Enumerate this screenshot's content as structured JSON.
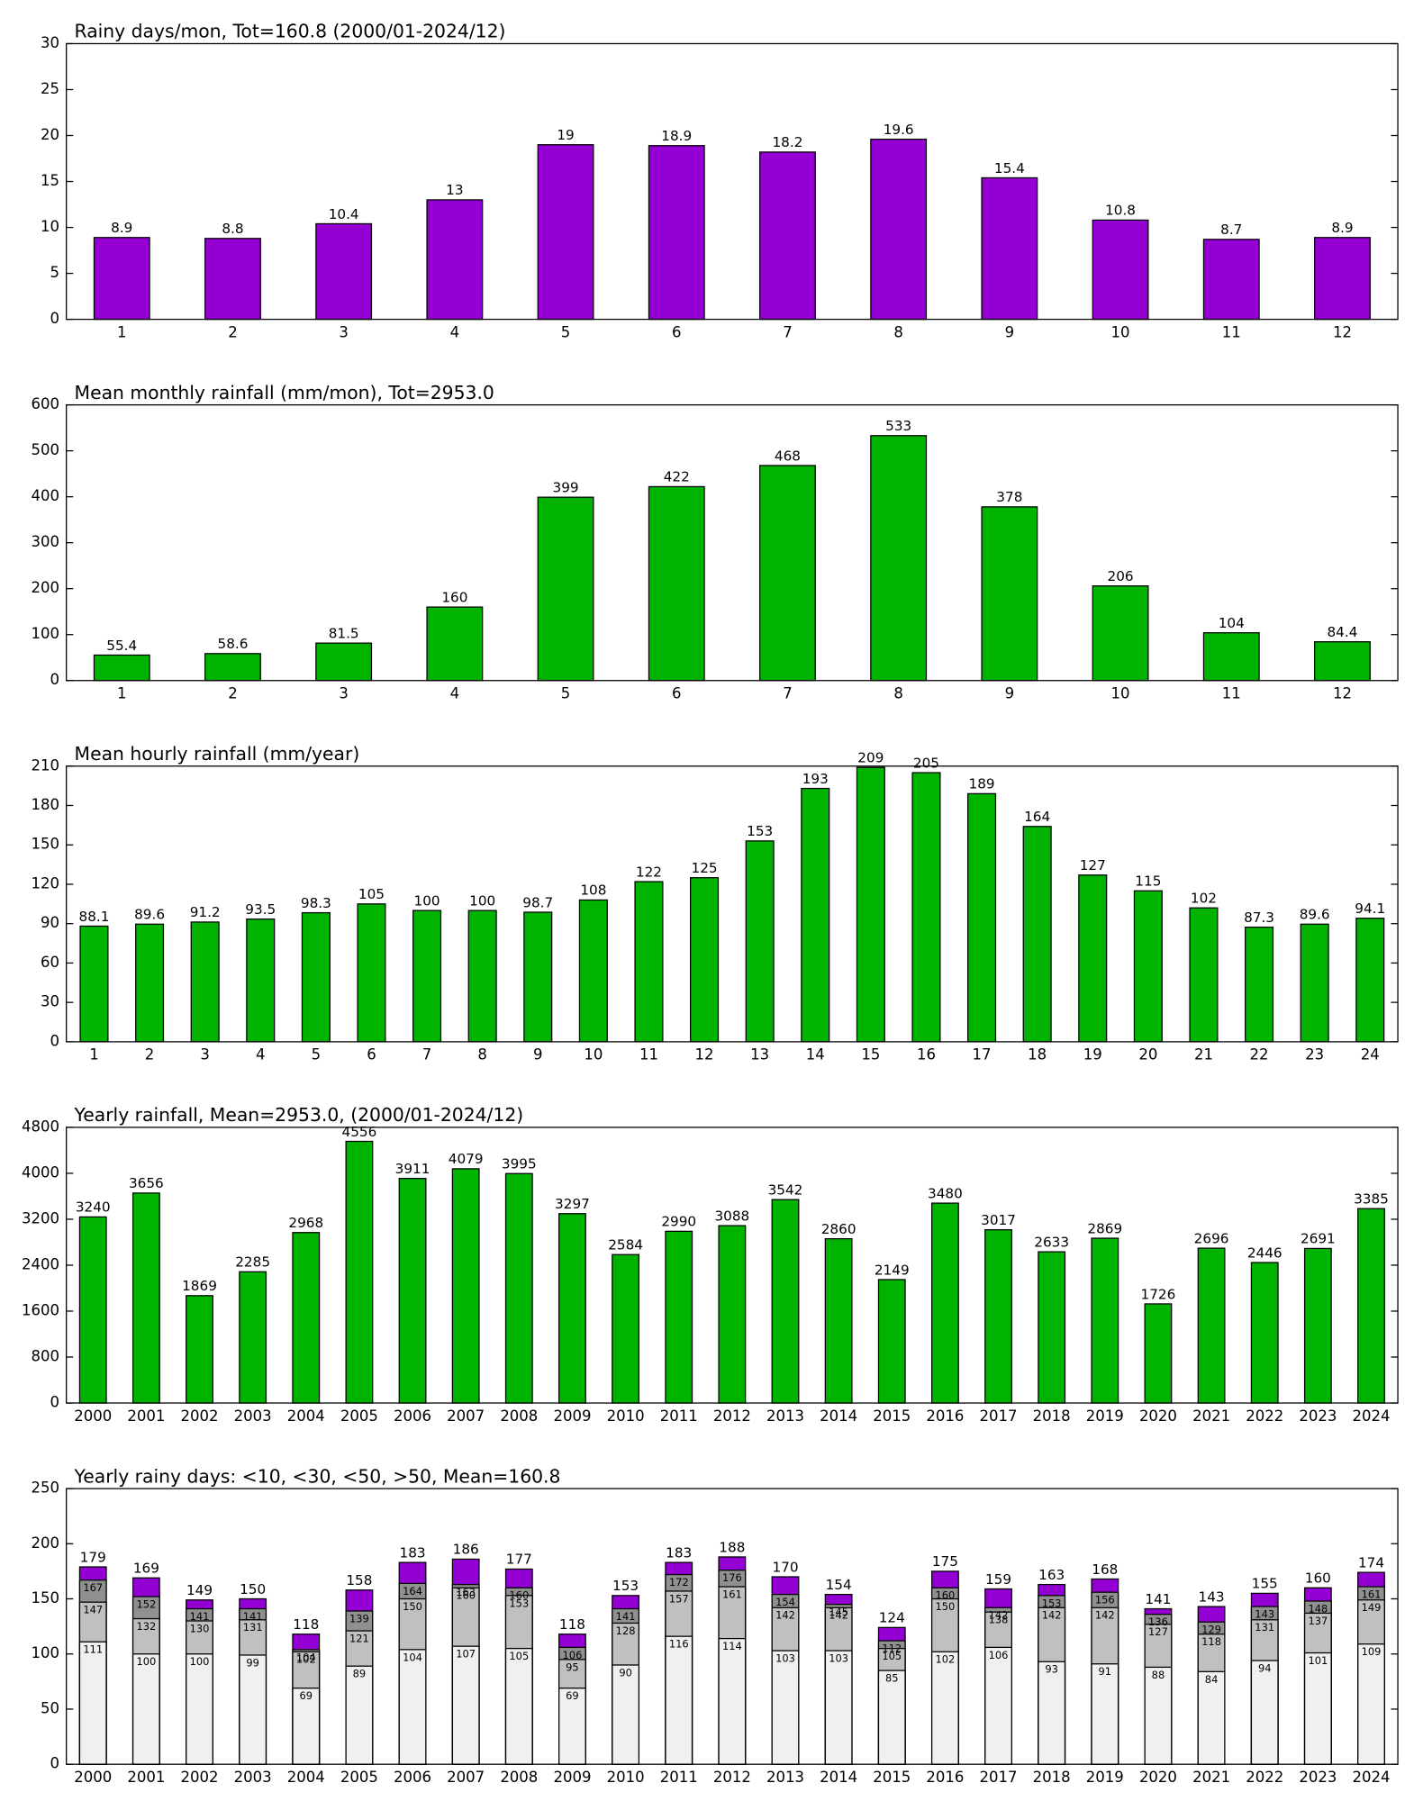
{
  "chart_data": [
    {
      "type": "bar",
      "title": "Rainy days/mon, Tot=160.8 (2000/01-2024/12)",
      "color": "#9400d3",
      "categories": [
        "1",
        "2",
        "3",
        "4",
        "5",
        "6",
        "7",
        "8",
        "9",
        "10",
        "11",
        "12"
      ],
      "values": [
        8.9,
        8.8,
        10.4,
        13,
        19,
        18.9,
        18.2,
        19.6,
        15.4,
        10.8,
        8.7,
        8.9
      ],
      "ylim": [
        0,
        30
      ],
      "yticks": [
        0,
        5,
        10,
        15,
        20,
        25,
        30
      ]
    },
    {
      "type": "bar",
      "title": "Mean monthly rainfall (mm/mon), Tot=2953.0",
      "color": "#00b300",
      "categories": [
        "1",
        "2",
        "3",
        "4",
        "5",
        "6",
        "7",
        "8",
        "9",
        "10",
        "11",
        "12"
      ],
      "values": [
        55.4,
        58.6,
        81.5,
        160,
        399,
        422,
        468,
        533,
        378,
        206,
        104,
        84.4
      ],
      "ylim": [
        0,
        600
      ],
      "yticks": [
        0,
        100,
        200,
        300,
        400,
        500,
        600
      ]
    },
    {
      "type": "bar",
      "title": "Mean hourly rainfall (mm/year)",
      "color": "#00b300",
      "categories": [
        "1",
        "2",
        "3",
        "4",
        "5",
        "6",
        "7",
        "8",
        "9",
        "10",
        "11",
        "12",
        "13",
        "14",
        "15",
        "16",
        "17",
        "18",
        "19",
        "20",
        "21",
        "22",
        "23",
        "24"
      ],
      "values": [
        88.1,
        89.6,
        91.2,
        93.5,
        98.3,
        105,
        100,
        100,
        98.7,
        108,
        122,
        125,
        153,
        193,
        209,
        205,
        189,
        164,
        127,
        115,
        102,
        87.3,
        89.6,
        94.1
      ],
      "ylim": [
        0,
        210
      ],
      "yticks": [
        0,
        30,
        60,
        90,
        120,
        150,
        180,
        210
      ]
    },
    {
      "type": "bar",
      "title": "Yearly rainfall, Mean=2953.0, (2000/01-2024/12)",
      "color": "#00b300",
      "categories": [
        "2000",
        "2001",
        "2002",
        "2003",
        "2004",
        "2005",
        "2006",
        "2007",
        "2008",
        "2009",
        "2010",
        "2011",
        "2012",
        "2013",
        "2014",
        "2015",
        "2016",
        "2017",
        "2018",
        "2019",
        "2020",
        "2021",
        "2022",
        "2023",
        "2024"
      ],
      "values": [
        3240,
        3656,
        1869,
        2285,
        2968,
        4556,
        3911,
        4079,
        3995,
        3297,
        2584,
        2990,
        3088,
        3542,
        2860,
        2149,
        3480,
        3017,
        2633,
        2869,
        1726,
        2696,
        2446,
        2691,
        3385
      ],
      "ylim": [
        0,
        4800
      ],
      "yticks": [
        0,
        800,
        1600,
        2400,
        3200,
        4000,
        4800
      ]
    },
    {
      "type": "overlay",
      "title": "Yearly rainy days: <10, <30, <50, >50, Mean=160.8",
      "categories": [
        "2000",
        "2001",
        "2002",
        "2003",
        "2004",
        "2005",
        "2006",
        "2007",
        "2008",
        "2009",
        "2010",
        "2011",
        "2012",
        "2013",
        "2014",
        "2015",
        "2016",
        "2017",
        "2018",
        "2019",
        "2020",
        "2021",
        "2022",
        "2023",
        "2024"
      ],
      "series": [
        {
          "color": "#f0f0f0",
          "values": [
            111,
            100,
            100,
            99,
            69,
            89,
            104,
            107,
            105,
            69,
            90,
            116,
            114,
            103,
            103,
            85,
            102,
            106,
            93,
            91,
            88,
            84,
            94,
            101,
            109
          ]
        },
        {
          "color": "#c0c0c0",
          "values": [
            147,
            132,
            130,
            131,
            102,
            121,
            150,
            160,
            153,
            95,
            128,
            157,
            161,
            142,
            142,
            105,
            150,
            138,
            142,
            142,
            127,
            118,
            131,
            137,
            149
          ]
        },
        {
          "color": "#909090",
          "values": [
            167,
            152,
            141,
            141,
            104,
            139,
            164,
            163,
            160,
            106,
            141,
            172,
            176,
            154,
            145,
            112,
            160,
            142,
            153,
            156,
            136,
            129,
            143,
            148,
            161
          ]
        },
        {
          "color": "#9400d3",
          "values": [
            179,
            169,
            149,
            150,
            118,
            158,
            183,
            186,
            177,
            118,
            153,
            183,
            188,
            170,
            154,
            124,
            175,
            159,
            163,
            168,
            141,
            143,
            155,
            160,
            174
          ]
        }
      ],
      "ylim": [
        0,
        250
      ],
      "yticks": [
        0,
        50,
        100,
        150,
        200,
        250
      ]
    }
  ]
}
